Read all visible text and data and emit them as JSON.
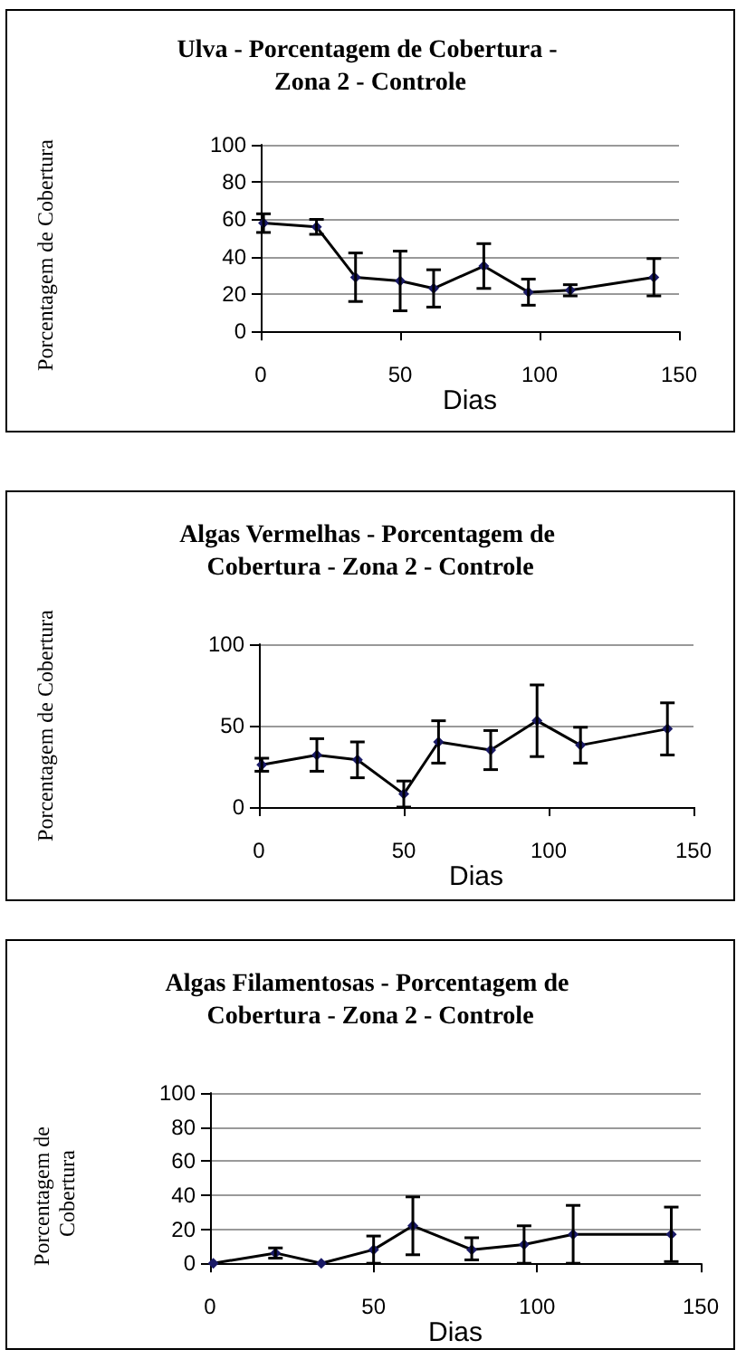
{
  "chart_data": [
    {
      "type": "line",
      "title": "Ulva - Porcentagem de Cobertura - Zona 2 - Controle",
      "xlabel": "Dias",
      "ylabel": "Porcentagem de Cobertura",
      "x": [
        1,
        20,
        34,
        50,
        62,
        80,
        96,
        111,
        141
      ],
      "xlim": [
        0,
        150
      ],
      "xticks": [
        0,
        50,
        100,
        150
      ],
      "ylim": [
        0,
        100
      ],
      "yticks": [
        0,
        20,
        40,
        60,
        80,
        100
      ],
      "grid": "y",
      "marker": "diamond",
      "line_style": "solid",
      "series": [
        {
          "color": "#1a1a66",
          "values": [
            58,
            56,
            29,
            27,
            23,
            35,
            21,
            22,
            29
          ],
          "errors": [
            5,
            4,
            13,
            16,
            10,
            12,
            7,
            3,
            10
          ]
        }
      ]
    },
    {
      "type": "line",
      "title": "Algas Vermelhas - Porcentagem de Cobertura - Zona 2 - Controle",
      "xlabel": "Dias",
      "ylabel": "Porcentagem de Cobertura",
      "x": [
        1,
        20,
        34,
        50,
        62,
        80,
        96,
        111,
        141
      ],
      "xlim": [
        0,
        150
      ],
      "xticks": [
        0,
        50,
        100,
        150
      ],
      "ylim": [
        0,
        100
      ],
      "yticks": [
        0,
        50,
        100
      ],
      "grid": "y",
      "marker": "diamond",
      "line_style": "solid",
      "series": [
        {
          "color": "#1a1a66",
          "values": [
            26,
            32,
            29,
            8,
            40,
            35,
            53,
            38,
            48
          ],
          "errors": [
            4,
            10,
            11,
            8,
            13,
            12,
            22,
            11,
            16
          ]
        }
      ]
    },
    {
      "type": "line",
      "title": "Algas Filamentosas - Porcentagem de Cobertura - Zona 2 - Controle",
      "xlabel": "Dias",
      "ylabel": "Porcentagem de Cobertura",
      "x": [
        1,
        20,
        34,
        50,
        62,
        80,
        96,
        111,
        141
      ],
      "xlim": [
        0,
        150
      ],
      "xticks": [
        0,
        50,
        100,
        150
      ],
      "ylim": [
        0,
        100
      ],
      "yticks": [
        0,
        20,
        40,
        60,
        80,
        100
      ],
      "grid": "y",
      "marker": "diamond",
      "line_style": "solid",
      "series": [
        {
          "color": "#1a1a66",
          "values": [
            0,
            6,
            0,
            8,
            22,
            8,
            11,
            17,
            17
          ],
          "errors": [
            null,
            3,
            null,
            8,
            17,
            [
              2,
              15
            ],
            11,
            17,
            16
          ]
        }
      ]
    }
  ]
}
